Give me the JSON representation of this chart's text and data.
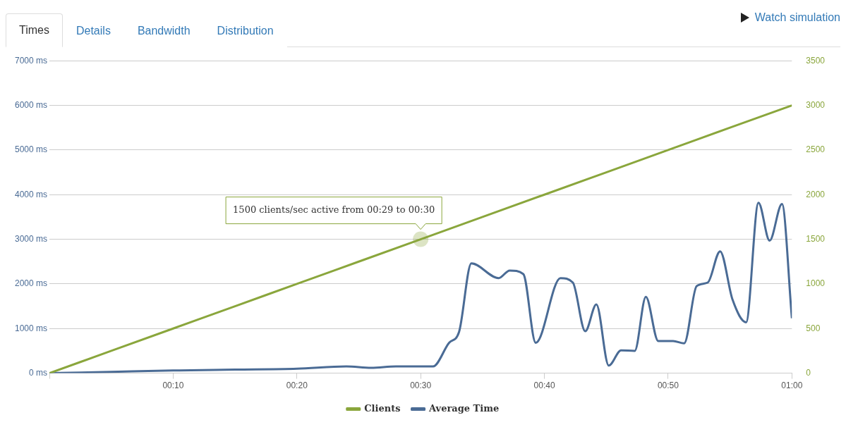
{
  "chart_data": {
    "type": "line",
    "annotations": [
      "Times",
      "Details",
      "Bandwidth",
      "Distribution",
      "Watch simulation",
      {
        "text": "1500 clients/sec active from 00:29 to 00:30",
        "x": 30,
        "y": 3000
      }
    ],
    "xlim": [
      0,
      60
    ],
    "xticks": [
      {
        "value": 0,
        "label": null
      },
      {
        "value": 10,
        "label": "00:10"
      },
      {
        "value": 20,
        "label": "00:20"
      },
      {
        "value": 30,
        "label": "00:30"
      },
      {
        "value": 40,
        "label": "00:40"
      },
      {
        "value": 50,
        "label": "00:50"
      },
      {
        "value": 60,
        "label": "01:00"
      }
    ],
    "ylim": [
      0,
      7000
    ],
    "yticks": [
      {
        "value": 0,
        "label": "0 ms"
      },
      {
        "value": 1000,
        "label": "1000 ms"
      },
      {
        "value": 2000,
        "label": "2000 ms"
      },
      {
        "value": 3000,
        "label": "3000 ms"
      },
      {
        "value": 4000,
        "label": "4000 ms"
      },
      {
        "value": 5000,
        "label": "5000 ms"
      },
      {
        "value": 6000,
        "label": "6000 ms"
      },
      {
        "value": 7000,
        "label": "7000 ms"
      }
    ],
    "y2lim": [
      0,
      3500
    ],
    "y2ticks": [
      0,
      500,
      1000,
      1500,
      2000,
      2500,
      3000,
      3500
    ],
    "grid": "y",
    "legend": "bottom",
    "marker": "none",
    "line_style": "solid",
    "series": [
      {
        "name": "Clients",
        "color": "#8aa63c",
        "axis": "y2",
        "x": [
          0,
          5,
          10,
          15,
          20,
          25,
          30,
          35,
          40,
          45,
          50,
          55,
          60
        ],
        "values": [
          0,
          250,
          500,
          750,
          1000,
          1250,
          1500,
          1750,
          2000,
          2250,
          2500,
          2750,
          3000
        ]
      },
      {
        "name": "Average Time",
        "color": "#4a6b95",
        "x": [
          0,
          5,
          10,
          15,
          20,
          24,
          26,
          28,
          31,
          32.3,
          33.1,
          34.1,
          36.3,
          37.2,
          38.3,
          39.3,
          41.3,
          42.3,
          43.3,
          44.2,
          45.2,
          46.2,
          47.3,
          48.2,
          49.2,
          50.4,
          51.3,
          52.3,
          53.2,
          54.2,
          55.2,
          56.3,
          57.3,
          58.2,
          59.2,
          60
        ],
        "values": [
          0,
          30,
          60,
          80,
          100,
          150,
          120,
          150,
          150,
          680,
          920,
          2460,
          2130,
          2300,
          2220,
          680,
          2130,
          2030,
          940,
          1540,
          170,
          510,
          500,
          1710,
          720,
          720,
          670,
          1950,
          2030,
          2730,
          1650,
          1140,
          3820,
          2970,
          3790,
          1230
        ]
      }
    ]
  }
}
